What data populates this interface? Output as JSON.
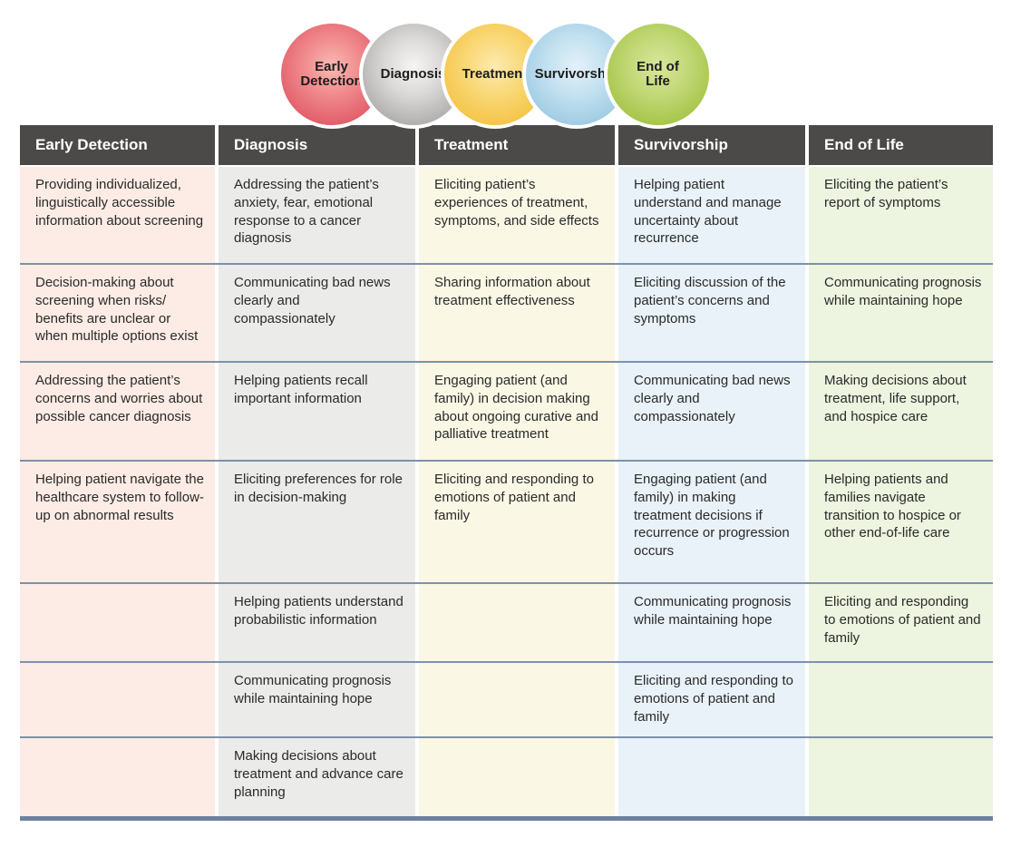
{
  "continuum": {
    "stages": [
      {
        "label": "Early Detection",
        "color": "#e2606b"
      },
      {
        "label": "Diagnosis",
        "color": "#b2b1b0"
      },
      {
        "label": "Treatment",
        "color": "#f5c64b"
      },
      {
        "label": "Survivorship",
        "color": "#a1cde4"
      },
      {
        "label": "End of Life",
        "color": "#a8c64b"
      }
    ]
  },
  "table": {
    "header_bg": "#4b4a49",
    "separator_color": "#7e90ab",
    "bottom_border_color": "#6d819f",
    "columns": [
      {
        "header": "Early Detection",
        "cell_bg": "#fcece5",
        "items": [
          "Providing individualized, linguistically accessible information about screening",
          "Decision-making about screening when risks/ benefits are unclear or when multiple options exist",
          "Addressing the patient’s concerns and worries about possible cancer diagnosis",
          "Helping patient navigate the healthcare system to follow-up on abnormal results",
          "",
          "",
          ""
        ]
      },
      {
        "header": "Diagnosis",
        "cell_bg": "#ebebea",
        "items": [
          "Addressing the patient’s anxiety, fear, emotional response to a cancer diagnosis",
          "Communicating bad news clearly and compassionately",
          "Helping patients recall important information",
          "Eliciting preferences for role in decision-making",
          "Helping patients understand probabilistic information",
          "Communicating prognosis while maintaining hope",
          "Making decisions about treatment and advance care planning"
        ]
      },
      {
        "header": "Treatment",
        "cell_bg": "#faf7e5",
        "items": [
          "Eliciting patient’s experiences of treatment, symptoms, and side effects",
          "Sharing information about treatment effectiveness",
          "Engaging patient (and family) in decision making about ongoing curative and palliative treatment",
          "Eliciting and responding to emotions of patient and family",
          "",
          "",
          ""
        ]
      },
      {
        "header": "Survivorship",
        "cell_bg": "#e9f2f8",
        "items": [
          "Helping patient understand and manage uncertainty about recurrence",
          "Eliciting discussion of the patient’s concerns and symptoms",
          "Communicating bad news clearly and compassionately",
          "Engaging patient (and family) in making treatment decisions if recurrence or progression occurs",
          "Communicating prognosis while maintaining hope",
          "Eliciting and responding to emotions of patient and family",
          ""
        ]
      },
      {
        "header": "End of Life",
        "cell_bg": "#edf4df",
        "items": [
          "Eliciting the patient’s report of symptoms",
          "Communicating prognosis while maintaining hope",
          "Making decisions about treatment, life support, and hospice care",
          "Helping patients and families navigate transition to hospice or other end-of-life care",
          "Eliciting and responding to emotions of patient and family",
          "",
          ""
        ]
      }
    ]
  }
}
